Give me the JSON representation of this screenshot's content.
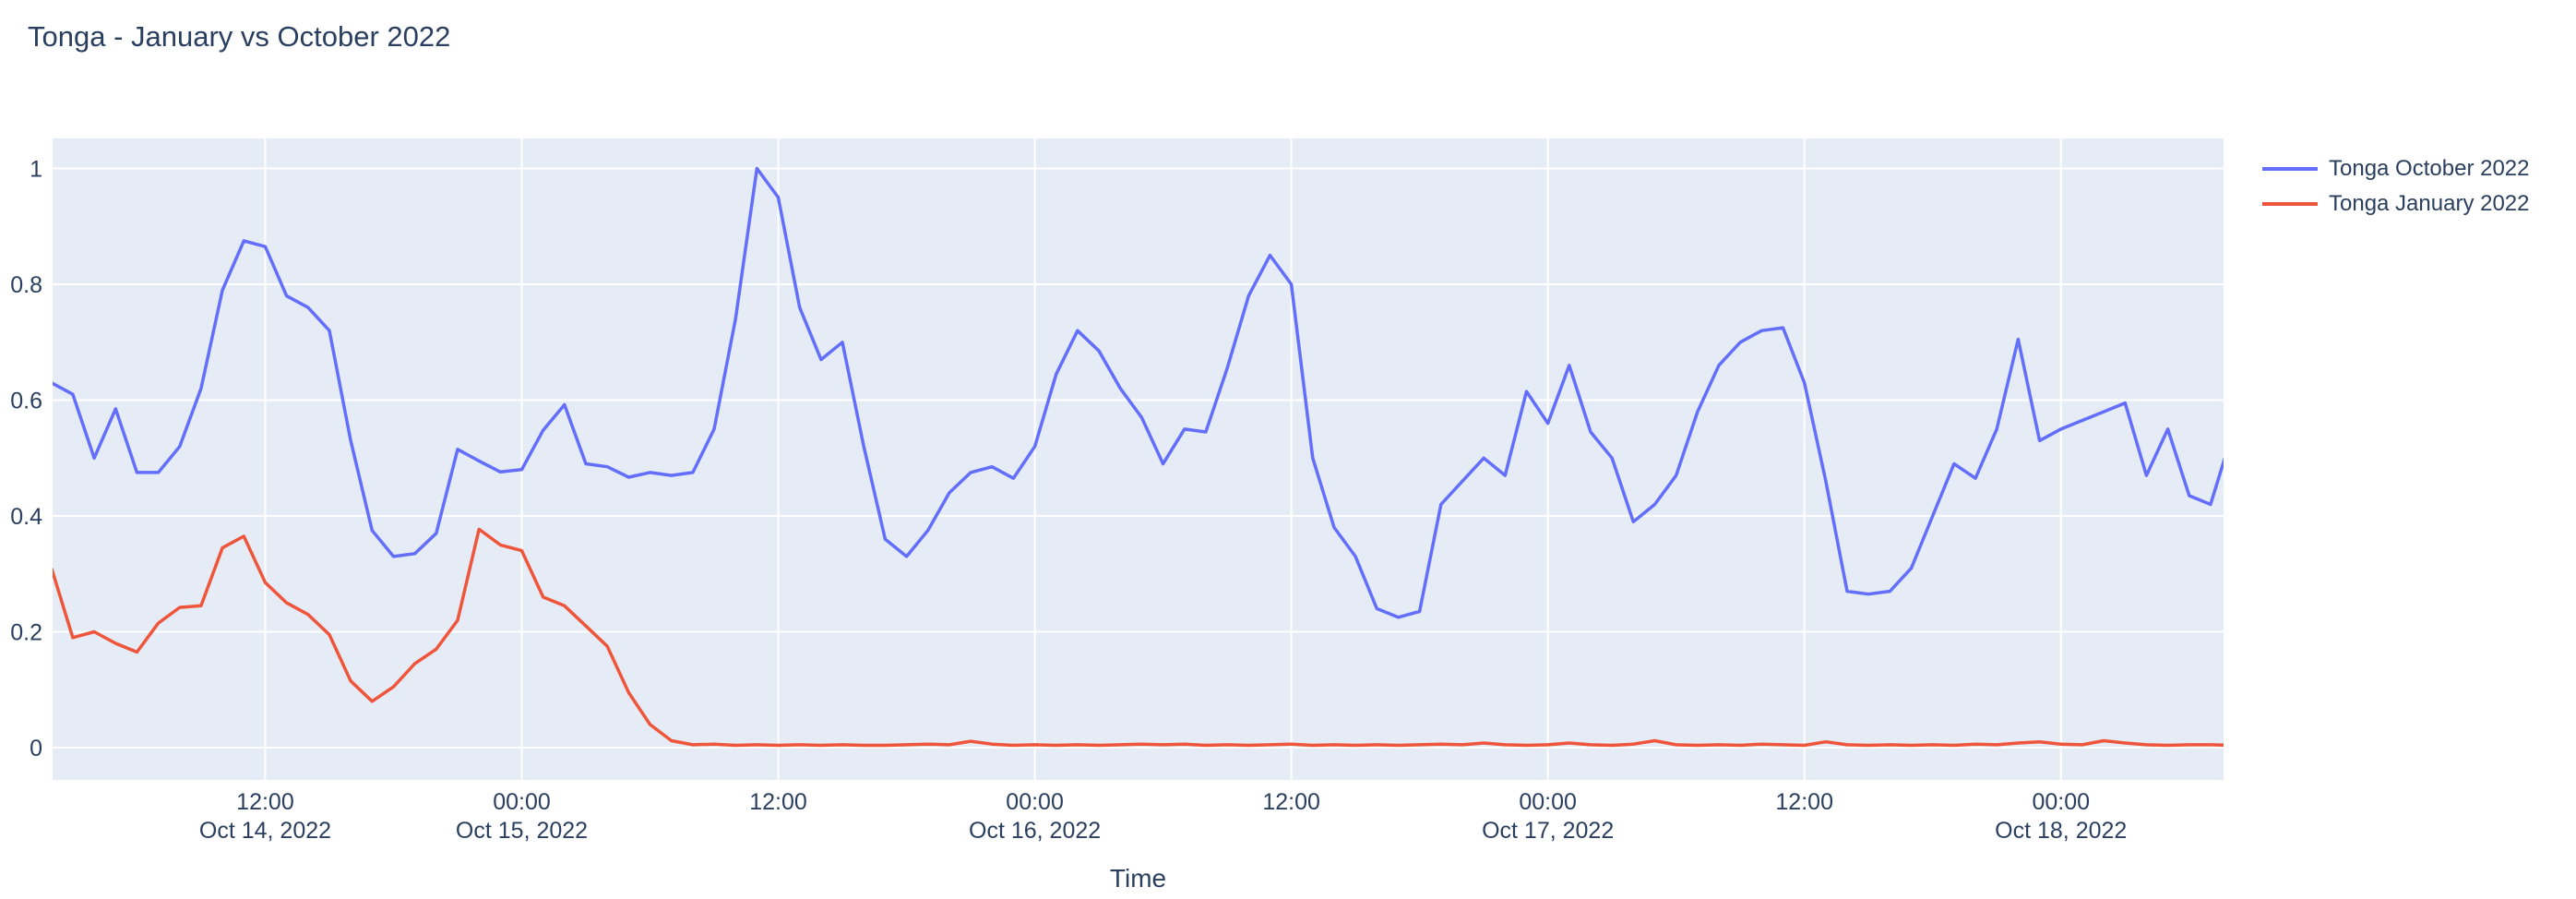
{
  "title": "Tonga - January vs October 2022",
  "legend": {
    "items": [
      {
        "label": "Tonga October 2022",
        "color": "#636EFA"
      },
      {
        "label": "Tonga January 2022",
        "color": "#EF553B"
      }
    ]
  },
  "colors": {
    "plot_bg": "#E5ECF6",
    "grid": "#FFFFFF",
    "text": "#2a3f5f",
    "series_blue": "#636EFA",
    "series_red": "#EF553B"
  },
  "chart_data": {
    "type": "line",
    "title": "Tonga - January vs October 2022",
    "xlabel": "Time",
    "ylabel": "",
    "x_start": "2022-10-14 02:00",
    "x_step_hours": 1,
    "ylim": [
      0,
      1
    ],
    "grid": true,
    "legend_position": "top-right-outside",
    "x_ticks": [
      {
        "h": -12,
        "line1": "12:00",
        "line2": "Oct 14, 2022"
      },
      {
        "h": 0,
        "line1": "00:00",
        "line2": "Oct 15, 2022"
      },
      {
        "h": 12,
        "line1": "12:00",
        "line2": ""
      },
      {
        "h": 24,
        "line1": "00:00",
        "line2": "Oct 16, 2022"
      },
      {
        "h": 36,
        "line1": "12:00",
        "line2": ""
      },
      {
        "h": 48,
        "line1": "00:00",
        "line2": "Oct 17, 2022"
      },
      {
        "h": 60,
        "line1": "12:00",
        "line2": ""
      },
      {
        "h": 72,
        "line1": "00:00",
        "line2": "Oct 18, 2022"
      }
    ],
    "y_ticks": [
      {
        "v": 0,
        "label": "0"
      },
      {
        "v": 0.2,
        "label": "0.2"
      },
      {
        "v": 0.4,
        "label": "0.4"
      },
      {
        "v": 0.6,
        "label": "0.6"
      },
      {
        "v": 0.8,
        "label": "0.8"
      },
      {
        "v": 1,
        "label": "1"
      }
    ],
    "series": [
      {
        "name": "Tonga October 2022",
        "color": "#636EFA",
        "values": [
          0.63,
          0.61,
          0.5,
          0.585,
          0.475,
          0.475,
          0.52,
          0.62,
          0.79,
          0.875,
          0.865,
          0.78,
          0.76,
          0.72,
          0.53,
          0.375,
          0.33,
          0.335,
          0.37,
          0.515,
          0.495,
          0.476,
          0.48,
          0.548,
          0.592,
          0.49,
          0.485,
          0.467,
          0.475,
          0.47,
          0.475,
          0.55,
          0.74,
          1.0,
          0.95,
          0.76,
          0.67,
          0.7,
          0.52,
          0.36,
          0.33,
          0.375,
          0.44,
          0.475,
          0.485,
          0.465,
          0.52,
          0.645,
          0.72,
          0.685,
          0.62,
          0.57,
          0.49,
          0.55,
          0.545,
          0.655,
          0.78,
          0.85,
          0.8,
          0.5,
          0.38,
          0.33,
          0.24,
          0.225,
          0.235,
          0.42,
          0.46,
          0.5,
          0.47,
          0.615,
          0.56,
          0.66,
          0.545,
          0.5,
          0.39,
          0.42,
          0.47,
          0.58,
          0.66,
          0.7,
          0.72,
          0.725,
          0.63,
          0.46,
          0.27,
          0.265,
          0.27,
          0.31,
          0.4,
          0.49,
          0.465,
          0.55,
          0.705,
          0.53,
          0.55,
          0.565,
          0.58,
          0.595,
          0.47,
          0.55,
          0.435,
          0.42,
          0.54
        ]
      },
      {
        "name": "Tonga January 2022",
        "color": "#EF553B",
        "values": [
          0.31,
          0.19,
          0.2,
          0.18,
          0.165,
          0.215,
          0.242,
          0.245,
          0.345,
          0.365,
          0.285,
          0.25,
          0.23,
          0.195,
          0.115,
          0.08,
          0.105,
          0.145,
          0.17,
          0.22,
          0.377,
          0.35,
          0.34,
          0.26,
          0.245,
          0.21,
          0.175,
          0.095,
          0.04,
          0.012,
          0.005,
          0.006,
          0.004,
          0.005,
          0.004,
          0.005,
          0.004,
          0.005,
          0.004,
          0.004,
          0.005,
          0.006,
          0.005,
          0.011,
          0.006,
          0.004,
          0.005,
          0.004,
          0.005,
          0.004,
          0.005,
          0.006,
          0.005,
          0.006,
          0.004,
          0.005,
          0.004,
          0.005,
          0.006,
          0.004,
          0.005,
          0.004,
          0.005,
          0.004,
          0.005,
          0.006,
          0.005,
          0.008,
          0.005,
          0.004,
          0.005,
          0.008,
          0.005,
          0.004,
          0.006,
          0.012,
          0.005,
          0.004,
          0.005,
          0.004,
          0.006,
          0.005,
          0.004,
          0.01,
          0.005,
          0.004,
          0.005,
          0.004,
          0.005,
          0.004,
          0.006,
          0.005,
          0.008,
          0.01,
          0.006,
          0.005,
          0.012,
          0.008,
          0.005,
          0.004,
          0.005,
          0.005,
          0.004
        ]
      }
    ]
  }
}
